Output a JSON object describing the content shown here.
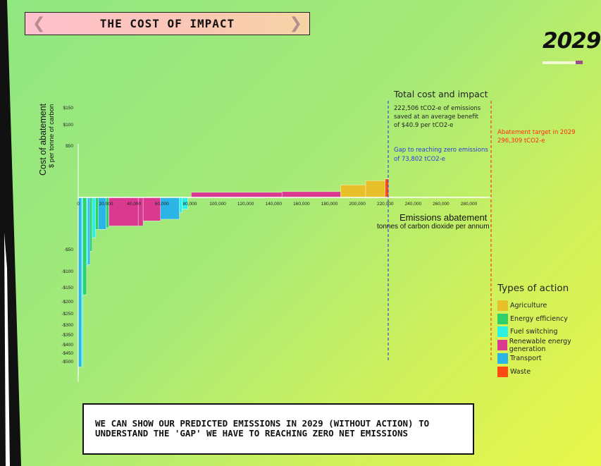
{
  "header": {
    "title": "THE COST OF IMPACT",
    "prev_icon": "chevron-left-icon",
    "next_icon": "chevron-right-icon"
  },
  "year": "2029",
  "caption": "WE CAN SHOW OUR PREDICTED EMISSIONS IN 2029 (WITHOUT ACTION) TO UNDERSTAND THE 'GAP' WE HAVE TO REACHING ZERO NET EMISSIONS",
  "annotations": {
    "total_title": "Total cost and impact",
    "total_line1": "222,506 tCO2-e of emissions",
    "total_line2": "saved at an average benefit",
    "total_line3": "of $40.9 per tCO2-e",
    "gap_line1": "Gap to reaching zero emissions",
    "gap_line2": "of 73,802 tCO2-e",
    "target_line1": "Abatement target in 2029",
    "target_line2": "296,309 tCO2-e"
  },
  "legend": {
    "title": "Types of action",
    "items": [
      {
        "label": "Agriculture",
        "color": "#e8c02a"
      },
      {
        "label": "Energy efficiency",
        "color": "#2fcf6a"
      },
      {
        "label": "Fuel switching",
        "color": "#2cf2e6"
      },
      {
        "label": "Renewable energy generation",
        "color": "#d93a8f"
      },
      {
        "label": "Transport",
        "color": "#2bb4e6"
      },
      {
        "label": "Waste",
        "color": "#ff4a12"
      }
    ]
  },
  "chart_data": {
    "type": "bar",
    "ylabel": "Cost of abatement",
    "ylabel_sub": "$ per tonne of carbon",
    "xlabel": "Emissions abatement",
    "xlabel_sub": "tonnes of carbon dioxide per annum",
    "x_ticks": [
      "0",
      "20,000",
      "40,000",
      "60,000",
      "80,000",
      "100,000",
      "120,000",
      "140,000",
      "160,000",
      "180,000",
      "200,000",
      "220,000",
      "240,000",
      "260,000",
      "280,000"
    ],
    "y_ticks": [
      {
        "value": 150,
        "label": "$150"
      },
      {
        "value": 100,
        "label": "$100"
      },
      {
        "value": 50,
        "label": "$50"
      },
      {
        "value": -50,
        "label": "-$50"
      },
      {
        "value": -100,
        "label": "-$100"
      },
      {
        "value": -150,
        "label": "-$150"
      },
      {
        "value": -200,
        "label": "-$200"
      },
      {
        "value": -250,
        "label": "-$250"
      },
      {
        "value": -300,
        "label": "-$300"
      },
      {
        "value": -350,
        "label": "-$350"
      },
      {
        "value": -400,
        "label": "-$400"
      },
      {
        "value": -450,
        "label": "-$450"
      },
      {
        "value": -500,
        "label": "-$500"
      }
    ],
    "bars": [
      {
        "x0": 0,
        "x1": 200,
        "cost": -530,
        "type": "Energy efficiency"
      },
      {
        "x0": 200,
        "x1": 2500,
        "cost": -505,
        "type": "Transport"
      },
      {
        "x0": 2500,
        "x1": 3300,
        "cost": -500,
        "type": "Fuel switching"
      },
      {
        "x0": 3300,
        "x1": 6000,
        "cost": -290,
        "type": "Energy efficiency"
      },
      {
        "x0": 6000,
        "x1": 7000,
        "cost": -205,
        "type": "Fuel switching"
      },
      {
        "x0": 7000,
        "x1": 8500,
        "cost": -200,
        "type": "Transport"
      },
      {
        "x0": 8500,
        "x1": 10000,
        "cost": -160,
        "type": "Energy efficiency"
      },
      {
        "x0": 10000,
        "x1": 12500,
        "cost": -120,
        "type": "Fuel switching"
      },
      {
        "x0": 12500,
        "x1": 14500,
        "cost": -95,
        "type": "Energy efficiency"
      },
      {
        "x0": 14500,
        "x1": 20000,
        "cost": -95,
        "type": "Transport"
      },
      {
        "x0": 20000,
        "x1": 22000,
        "cost": -90,
        "type": "Energy efficiency"
      },
      {
        "x0": 22000,
        "x1": 43000,
        "cost": -85,
        "type": "Renewable energy generation"
      },
      {
        "x0": 43000,
        "x1": 46500,
        "cost": -85,
        "type": "Renewable energy generation"
      },
      {
        "x0": 46500,
        "x1": 59000,
        "cost": -70,
        "type": "Renewable energy generation"
      },
      {
        "x0": 59000,
        "x1": 72500,
        "cost": -65,
        "type": "Transport"
      },
      {
        "x0": 72500,
        "x1": 74500,
        "cost": -45,
        "type": "Fuel switching"
      },
      {
        "x0": 74500,
        "x1": 78500,
        "cost": -35,
        "type": "Fuel switching"
      },
      {
        "x0": 78500,
        "x1": 79500,
        "cost": -3,
        "type": "Agriculture"
      },
      {
        "x0": 81000,
        "x1": 146000,
        "cost": 15,
        "type": "Renewable energy generation"
      },
      {
        "x0": 146000,
        "x1": 188000,
        "cost": 17,
        "type": "Renewable energy generation"
      },
      {
        "x0": 188000,
        "x1": 206000,
        "cost": 37,
        "type": "Agriculture"
      },
      {
        "x0": 206000,
        "x1": 220000,
        "cost": 50,
        "type": "Agriculture"
      },
      {
        "x0": 220000,
        "x1": 222500,
        "cost": 55,
        "type": "Waste"
      }
    ],
    "reference_lines": [
      {
        "x": 222506,
        "color": "#2a3bd9",
        "label": "Total cost and impact"
      },
      {
        "x": 296309,
        "color": "#ff2a10",
        "label": "Abatement target in 2029"
      }
    ],
    "xlim": [
      0,
      296309
    ],
    "ylim": [
      -550,
      160
    ]
  }
}
